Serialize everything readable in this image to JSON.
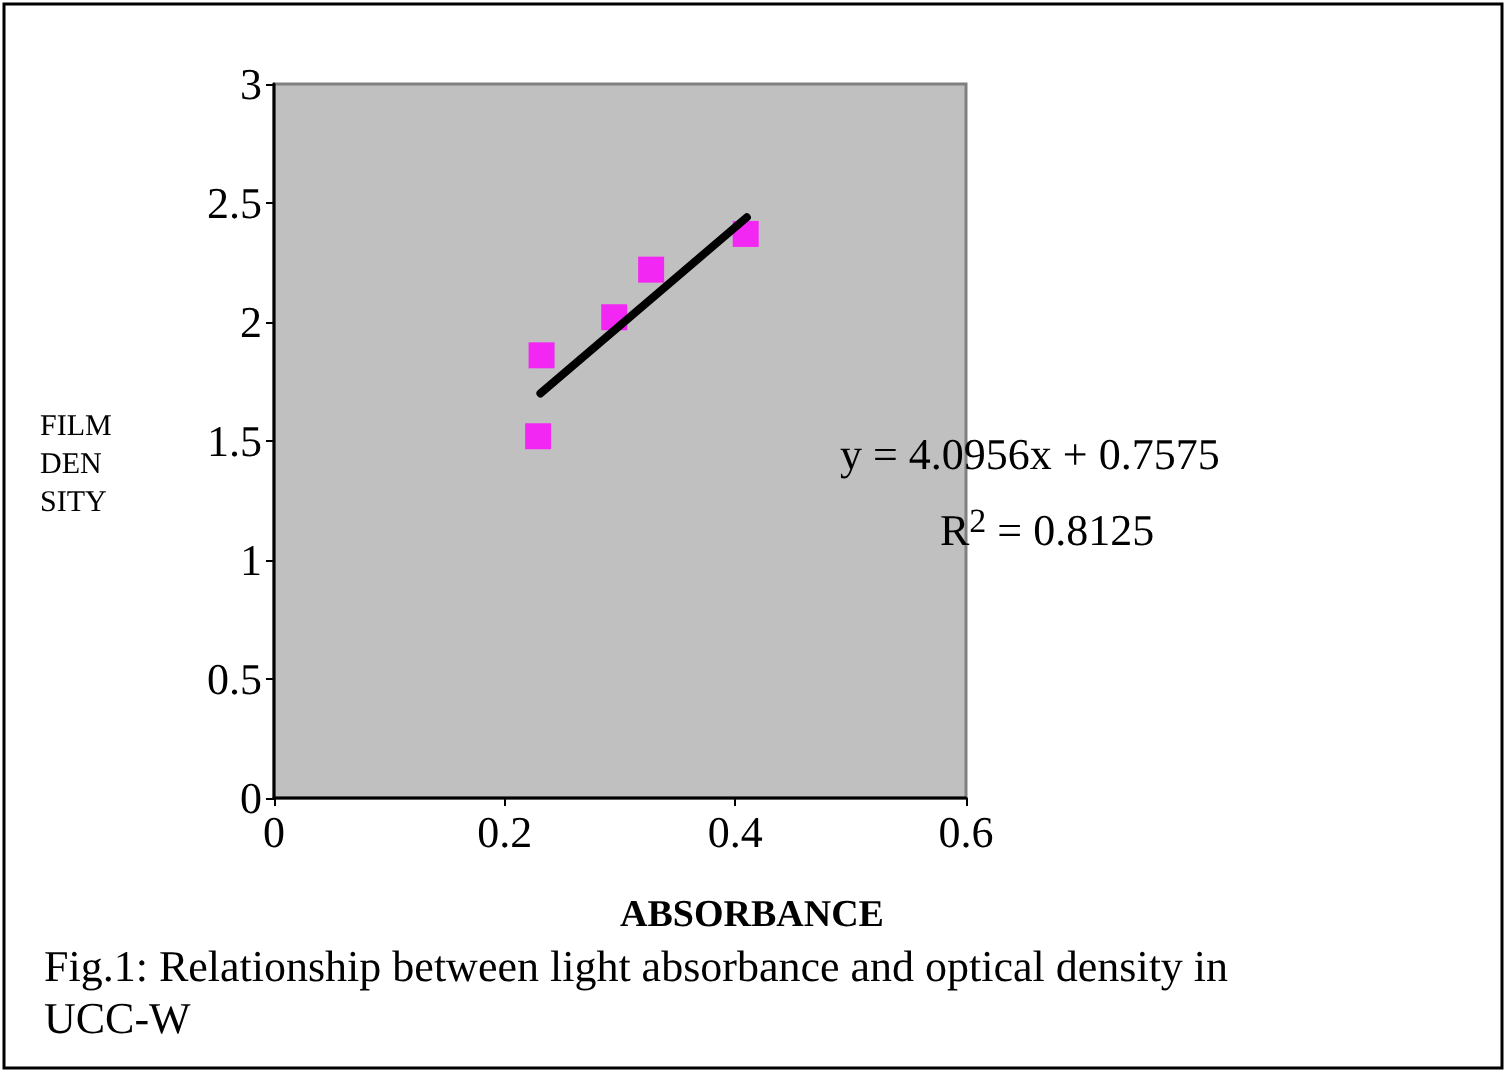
{
  "chart_data": {
    "type": "scatter",
    "xlabel": "ABSORBANCE",
    "ylabel": "FILM DEN SITY",
    "series": [
      {
        "color": "#ff00ff",
        "marker": "square",
        "x": [
          0.229,
          0.232,
          0.295,
          0.327,
          0.409
        ],
        "values": [
          1.52,
          1.86,
          2.02,
          2.22,
          2.37
        ]
      },
      {
        "type": "line",
        "color": "#000000",
        "marker": "none",
        "line_style": "solid",
        "x": [
          0.231,
          0.41
        ],
        "values": [
          1.7,
          2.44
        ]
      }
    ],
    "xlim": [
      0,
      0.6
    ],
    "xticks": [
      0,
      0.2,
      0.4,
      0.6
    ],
    "ylim": [
      0,
      3
    ],
    "yticks": [
      0,
      0.5,
      1,
      1.5,
      2,
      2.5,
      3
    ],
    "grid": false,
    "annotations": [
      "y = 4.0956x + 0.7575",
      "R$^{2}$ = 0.8125",
      "Fig.1: Relationship between light absorbance and optical density in UCC-W"
    ]
  }
}
